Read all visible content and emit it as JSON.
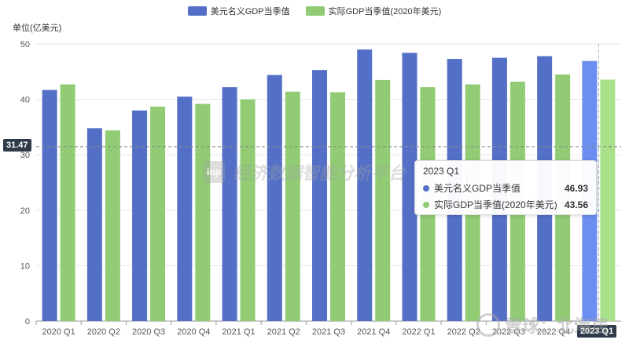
{
  "legend": {
    "nominal_label": "美元名义GDP当季值",
    "real_label": "实际GDP当季值(2020年美元)"
  },
  "unit_label": "单位(亿美元)",
  "watermark": {
    "logo": "iop",
    "text": "经济数据智能分析平台"
  },
  "brand": {
    "text": "雪球：北海居"
  },
  "y_marker": "31.47",
  "x_marker": "2023 Q1",
  "tooltip": {
    "title": "2023 Q1",
    "rows": [
      {
        "name": "美元名义GDP当季值",
        "value": "46.93"
      },
      {
        "name": "实际GDP当季值(2020年美元)",
        "value": "43.56"
      }
    ]
  },
  "colors": {
    "nominal": "#5470c6",
    "real": "#91cc75",
    "nominal_highlight": "#6c8ef0",
    "real_highlight": "#a9e08a",
    "grid": "#e6e6e6",
    "axis_text": "#555555"
  },
  "chart_data": {
    "type": "bar",
    "categories": [
      "2020 Q1",
      "2020 Q2",
      "2020 Q3",
      "2020 Q4",
      "2021 Q1",
      "2021 Q2",
      "2021 Q3",
      "2021 Q4",
      "2022 Q1",
      "2022 Q2",
      "2022 Q3",
      "2022 Q4",
      "2023 Q1"
    ],
    "series": [
      {
        "name": "美元名义GDP当季值",
        "values": [
          41.7,
          34.8,
          38.0,
          40.5,
          42.2,
          44.4,
          45.3,
          49.0,
          48.4,
          47.3,
          47.5,
          47.8,
          46.93
        ]
      },
      {
        "name": "实际GDP当季值(2020年美元)",
        "values": [
          42.7,
          34.4,
          38.7,
          39.2,
          40.0,
          41.4,
          41.3,
          43.5,
          42.2,
          42.7,
          43.2,
          44.5,
          43.56
        ]
      }
    ],
    "y_ticks": [
      0,
      10,
      20,
      30,
      40,
      50
    ],
    "ylim": [
      0,
      50
    ],
    "ylabel": "单位(亿美元)",
    "highlight_index": 12,
    "crosshair_value": 31.47,
    "grid": true,
    "legend_position": "top-center"
  }
}
